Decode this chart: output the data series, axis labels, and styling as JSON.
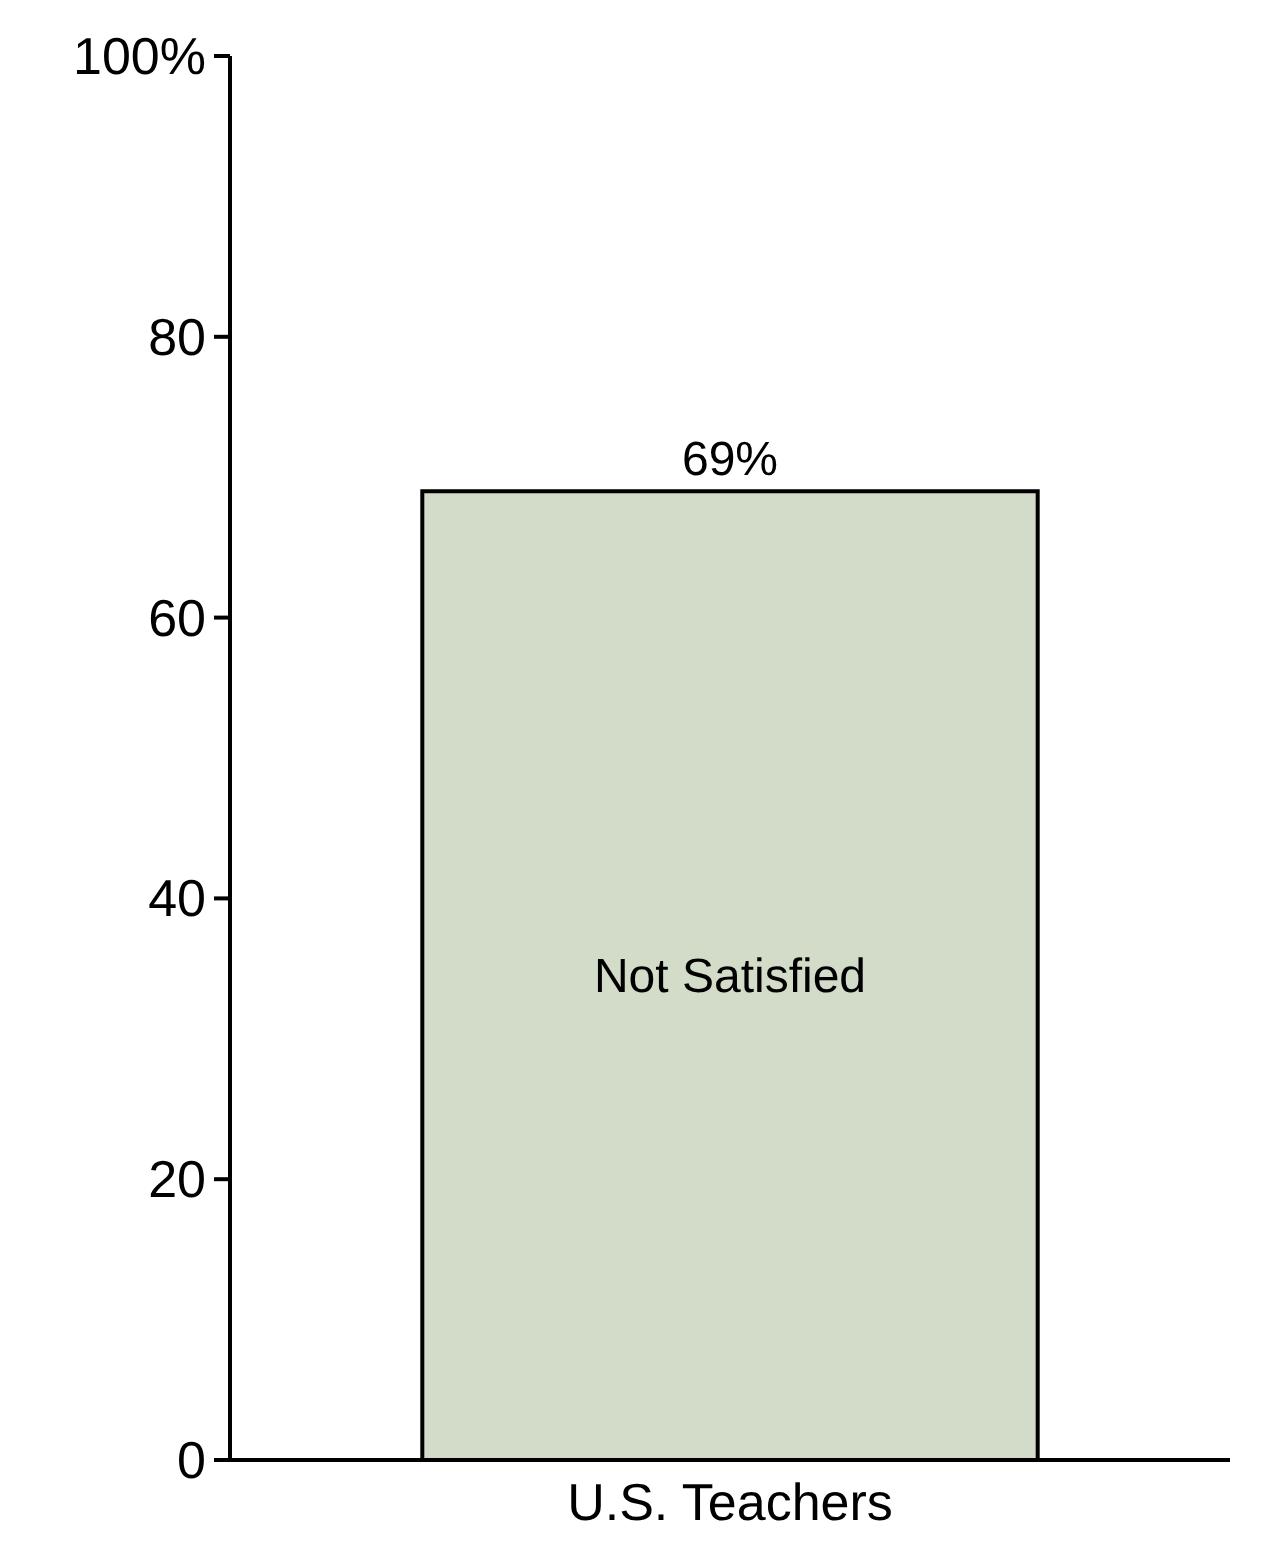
{
  "chart_data": {
    "type": "bar",
    "categories": [
      "U.S. Teachers"
    ],
    "series": [
      {
        "name": "Not Satisfied",
        "color": "#d3dcc8",
        "values": [
          69
        ],
        "value_labels": [
          "69%"
        ]
      }
    ],
    "ylim": [
      0,
      100
    ],
    "yticks": [
      0,
      20,
      40,
      60,
      80,
      {
        "value": 100,
        "label": "100%"
      }
    ],
    "grid": false
  }
}
